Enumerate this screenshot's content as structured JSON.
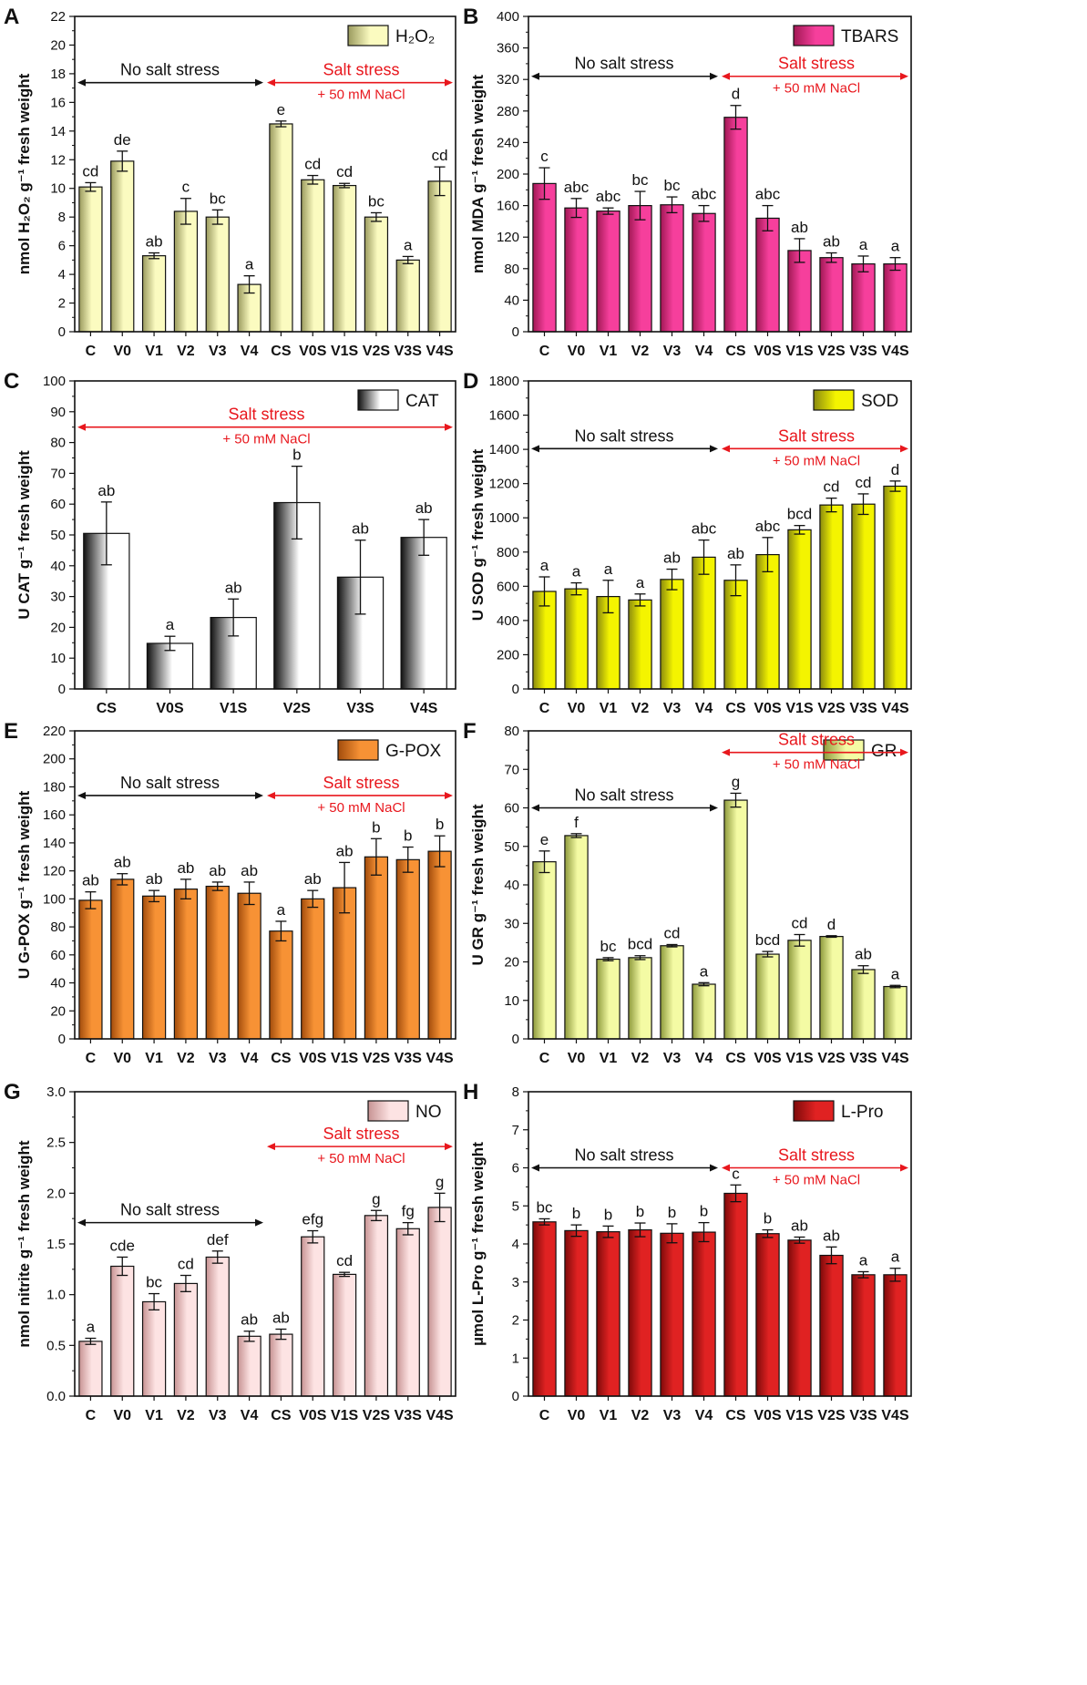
{
  "colors": {
    "annot_red": "#e8171d",
    "axis": "#111111"
  },
  "chart_data": [
    {
      "panel": "A",
      "type": "bar",
      "legend": "H₂O₂",
      "ylabel": "nmol H₂O₂ g⁻¹ fresh weight",
      "xlabel": "",
      "categories": [
        "C",
        "V0",
        "V1",
        "V2",
        "V3",
        "V4",
        "CS",
        "V0S",
        "V1S",
        "V2S",
        "V3S",
        "V4S"
      ],
      "values": [
        10.1,
        11.9,
        5.3,
        8.4,
        8.0,
        3.3,
        14.5,
        10.6,
        10.2,
        8.0,
        5.0,
        10.5
      ],
      "errors": [
        0.3,
        0.7,
        0.2,
        0.9,
        0.5,
        0.6,
        0.2,
        0.3,
        0.15,
        0.3,
        0.25,
        1.0
      ],
      "letters": [
        "cd",
        "de",
        "ab",
        "c",
        "bc",
        "a",
        "e",
        "cd",
        "cd",
        "bc",
        "a",
        "cd"
      ],
      "ylim": [
        0,
        22
      ],
      "yticks": [
        0,
        2,
        4,
        6,
        8,
        10,
        12,
        14,
        16,
        18,
        20,
        22
      ],
      "bar_colors": [
        "#9a9a5e",
        "#fbfbc0"
      ],
      "annotations": {
        "no_salt": "No salt stress",
        "salt": "Salt stress",
        "salt_sub": "+ 50 mM NaCl"
      }
    },
    {
      "panel": "B",
      "type": "bar",
      "legend": "TBARS",
      "ylabel": "nmol MDA g⁻¹ fresh weight",
      "xlabel": "",
      "categories": [
        "C",
        "V0",
        "V1",
        "V2",
        "V3",
        "V4",
        "CS",
        "V0S",
        "V1S",
        "V2S",
        "V3S",
        "V4S"
      ],
      "values": [
        188,
        157,
        153,
        160,
        161,
        150,
        272,
        144,
        103,
        94,
        86,
        86
      ],
      "errors": [
        20,
        12,
        4,
        18,
        10,
        10,
        15,
        16,
        15,
        6,
        10,
        8
      ],
      "letters": [
        "c",
        "abc",
        "abc",
        "bc",
        "bc",
        "abc",
        "d",
        "abc",
        "ab",
        "ab",
        "a",
        "a"
      ],
      "ylim": [
        0,
        400
      ],
      "yticks": [
        0,
        40,
        80,
        120,
        160,
        200,
        240,
        280,
        320,
        360,
        400
      ],
      "bar_colors": [
        "#a11854",
        "#f63f9c"
      ],
      "annotations": {
        "no_salt": "No salt stress",
        "salt": "Salt stress",
        "salt_sub": "+ 50 mM NaCl"
      }
    },
    {
      "panel": "C",
      "type": "bar",
      "legend": "CAT",
      "ylabel": "U CAT g⁻¹ fresh weight",
      "xlabel": "",
      "categories": [
        "CS",
        "V0S",
        "V1S",
        "V2S",
        "V3S",
        "V4S"
      ],
      "values": [
        50.5,
        14.8,
        23.2,
        60.5,
        36.3,
        49.2
      ],
      "errors": [
        10.2,
        2.3,
        6.0,
        11.8,
        12.0,
        5.8
      ],
      "letters": [
        "ab",
        "a",
        "ab",
        "b",
        "ab",
        "ab"
      ],
      "ylim": [
        0,
        100
      ],
      "yticks": [
        0,
        10,
        20,
        30,
        40,
        50,
        60,
        70,
        80,
        90,
        100
      ],
      "bar_colors": [
        "#111111",
        "#ffffff"
      ],
      "annotations": {
        "salt": "Salt stress",
        "salt_sub": "+ 50 mM NaCl"
      }
    },
    {
      "panel": "D",
      "type": "bar",
      "legend": "SOD",
      "ylabel": "U SOD g⁻¹ fresh weight",
      "xlabel": "",
      "categories": [
        "C",
        "V0",
        "V1",
        "V2",
        "V3",
        "V4",
        "CS",
        "V0S",
        "V1S",
        "V2S",
        "V3S",
        "V4S"
      ],
      "values": [
        570,
        585,
        540,
        520,
        640,
        770,
        635,
        785,
        930,
        1075,
        1080,
        1185
      ],
      "errors": [
        85,
        35,
        95,
        35,
        60,
        100,
        90,
        100,
        25,
        40,
        60,
        30
      ],
      "letters": [
        "a",
        "a",
        "a",
        "a",
        "ab",
        "abc",
        "ab",
        "abc",
        "bcd",
        "cd",
        "cd",
        "d"
      ],
      "ylim": [
        0,
        1800
      ],
      "yticks": [
        0,
        200,
        400,
        600,
        800,
        1000,
        1200,
        1400,
        1600,
        1800
      ],
      "bar_colors": [
        "#8a8a0e",
        "#f4f400"
      ],
      "annotations": {
        "no_salt": "No salt stress",
        "salt": "Salt stress",
        "salt_sub": "+ 50 mM NaCl"
      }
    },
    {
      "panel": "E",
      "type": "bar",
      "legend": "G-POX",
      "ylabel": "U G-POX g⁻¹ fresh weight",
      "xlabel": "",
      "categories": [
        "C",
        "V0",
        "V1",
        "V2",
        "V3",
        "V4",
        "CS",
        "V0S",
        "V1S",
        "V2S",
        "V3S",
        "V4S"
      ],
      "values": [
        99,
        114,
        102,
        107,
        109,
        104,
        77,
        100,
        108,
        130,
        128,
        134
      ],
      "errors": [
        6,
        4,
        4,
        7,
        3,
        8,
        7,
        6,
        18,
        13,
        9,
        11
      ],
      "letters": [
        "ab",
        "ab",
        "ab",
        "ab",
        "ab",
        "ab",
        "a",
        "ab",
        "ab",
        "b",
        "b",
        "b"
      ],
      "ylim": [
        0,
        220
      ],
      "yticks": [
        0,
        20,
        40,
        60,
        80,
        100,
        120,
        140,
        160,
        180,
        200,
        220
      ],
      "bar_colors": [
        "#a24c0c",
        "#f79235"
      ],
      "annotations": {
        "no_salt": "No salt stress",
        "salt": "Salt stress",
        "salt_sub": "+ 50 mM NaCl"
      }
    },
    {
      "panel": "F",
      "type": "bar",
      "legend": "GR",
      "ylabel": "U GR g⁻¹ fresh weight",
      "xlabel": "",
      "categories": [
        "C",
        "V0",
        "V1",
        "V2",
        "V3",
        "V4",
        "CS",
        "V0S",
        "V1S",
        "V2S",
        "V3S",
        "V4S"
      ],
      "values": [
        46,
        52.8,
        20.7,
        21.1,
        24.2,
        14.2,
        62,
        22,
        25.6,
        26.6,
        18,
        13.6
      ],
      "errors": [
        2.8,
        0.5,
        0.4,
        0.5,
        0.3,
        0.4,
        1.8,
        0.7,
        1.5,
        0.2,
        1.0,
        0.3
      ],
      "letters": [
        "e",
        "f",
        "bc",
        "bcd",
        "cd",
        "a",
        "g",
        "bcd",
        "cd",
        "d",
        "ab",
        "a"
      ],
      "ylim": [
        0,
        80
      ],
      "yticks": [
        0,
        10,
        20,
        30,
        40,
        50,
        60,
        70,
        80
      ],
      "bar_colors": [
        "#8e9a3c",
        "#f4fba4"
      ],
      "annotations": {
        "no_salt": "No salt stress",
        "salt": "Salt stress",
        "salt_sub": "+ 50 mM NaCl"
      }
    },
    {
      "panel": "G",
      "type": "bar",
      "legend": "NO",
      "ylabel": "nmol nitrite g⁻¹ fresh weight",
      "xlabel": "",
      "categories": [
        "C",
        "V0",
        "V1",
        "V2",
        "V3",
        "V4",
        "CS",
        "V0S",
        "V1S",
        "V2S",
        "V3S",
        "V4S"
      ],
      "values": [
        0.54,
        1.28,
        0.93,
        1.11,
        1.37,
        0.59,
        0.61,
        1.57,
        1.2,
        1.78,
        1.65,
        1.86
      ],
      "errors": [
        0.03,
        0.09,
        0.08,
        0.08,
        0.06,
        0.05,
        0.05,
        0.06,
        0.02,
        0.05,
        0.06,
        0.14
      ],
      "letters": [
        "a",
        "cde",
        "bc",
        "cd",
        "def",
        "ab",
        "ab",
        "efg",
        "cd",
        "g",
        "fg",
        "g"
      ],
      "ylim": [
        0,
        3.0
      ],
      "yticks": [
        0,
        0.5,
        1.0,
        1.5,
        2.0,
        2.5,
        3.0
      ],
      "tick_decimals": 1,
      "bar_colors": [
        "#c79393",
        "#fde3e3"
      ],
      "annotations": {
        "no_salt": "No salt stress",
        "salt": "Salt stress",
        "salt_sub": "+ 50 mM NaCl"
      }
    },
    {
      "panel": "H",
      "type": "bar",
      "legend": "L-Pro",
      "ylabel": "µmol L-Pro g⁻¹ fresh weight",
      "xlabel": "",
      "categories": [
        "C",
        "V0",
        "V1",
        "V2",
        "V3",
        "V4",
        "CS",
        "V0S",
        "V1S",
        "V2S",
        "V3S",
        "V4S"
      ],
      "values": [
        4.58,
        4.35,
        4.32,
        4.37,
        4.28,
        4.31,
        5.33,
        4.27,
        4.1,
        3.7,
        3.19,
        3.19
      ],
      "errors": [
        0.08,
        0.15,
        0.15,
        0.18,
        0.25,
        0.25,
        0.22,
        0.1,
        0.08,
        0.22,
        0.08,
        0.17
      ],
      "letters": [
        "bc",
        "b",
        "b",
        "b",
        "b",
        "b",
        "c",
        "b",
        "ab",
        "ab",
        "a",
        "a"
      ],
      "ylim": [
        0,
        8
      ],
      "yticks": [
        0,
        1,
        2,
        3,
        4,
        5,
        6,
        7,
        8
      ],
      "bar_colors": [
        "#7e0a0a",
        "#e02222"
      ],
      "annotations": {
        "no_salt": "No salt stress",
        "salt": "Salt stress",
        "salt_sub": "+ 50 mM NaCl"
      }
    }
  ]
}
